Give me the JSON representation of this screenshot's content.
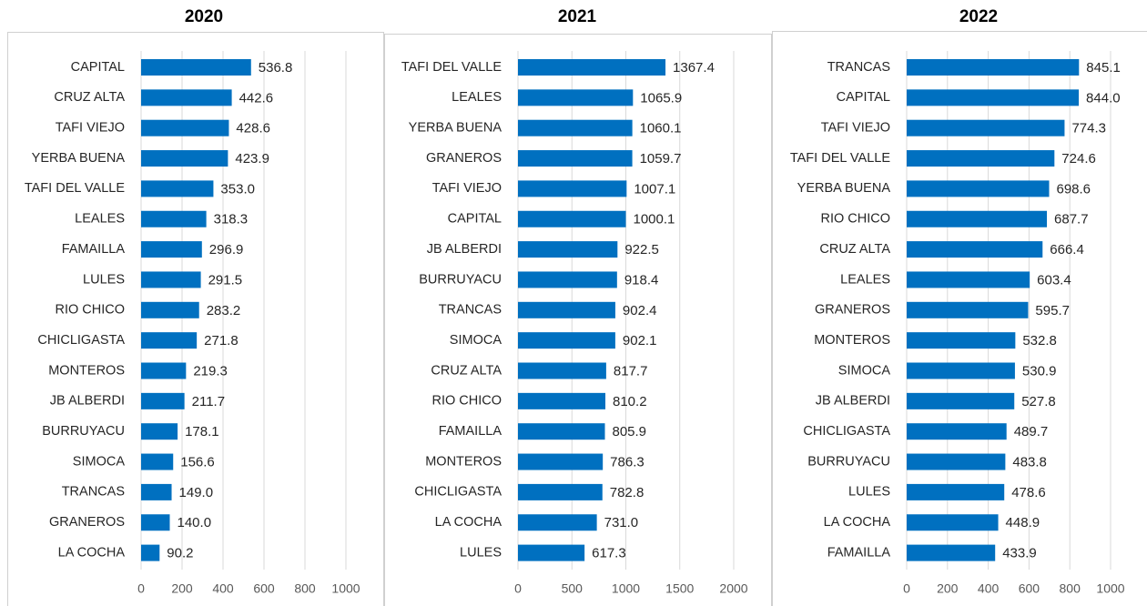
{
  "chart_data": [
    {
      "type": "bar",
      "orientation": "horizontal",
      "title": "2020",
      "color": "#0070c0",
      "categories": [
        "CAPITAL",
        "CRUZ ALTA",
        "TAFI VIEJO",
        "YERBA BUENA",
        "TAFI DEL VALLE",
        "LEALES",
        "FAMAILLA",
        "LULES",
        "RIO CHICO",
        "CHICLIGASTA",
        "MONTEROS",
        "JB ALBERDI",
        "BURRUYACU",
        "SIMOCA",
        "TRANCAS",
        "GRANEROS",
        "LA COCHA"
      ],
      "values": [
        536.8,
        442.6,
        428.6,
        423.9,
        353.0,
        318.3,
        296.9,
        291.5,
        283.2,
        271.8,
        219.3,
        211.7,
        178.1,
        156.6,
        149.0,
        140.0,
        90.2
      ],
      "value_labels": [
        "536.8",
        "442.6",
        "428.6",
        "423.9",
        "353.0",
        "318.3",
        "296.9",
        "291.5",
        "283.2",
        "271.8",
        "219.3",
        "211.7",
        "178.1",
        "156.6",
        "149.0",
        "140.0",
        "90.2"
      ],
      "xlim": [
        0,
        1000
      ],
      "xticks": [
        0,
        200,
        400,
        600,
        800,
        1000
      ],
      "grid": true
    },
    {
      "type": "bar",
      "orientation": "horizontal",
      "title": "2021",
      "color": "#0070c0",
      "categories": [
        "TAFI DEL VALLE",
        "LEALES",
        "YERBA BUENA",
        "GRANEROS",
        "TAFI VIEJO",
        "CAPITAL",
        "JB ALBERDI",
        "BURRUYACU",
        "TRANCAS",
        "SIMOCA",
        "CRUZ ALTA",
        "RIO CHICO",
        "FAMAILLA",
        "MONTEROS",
        "CHICLIGASTA",
        "LA COCHA",
        "LULES"
      ],
      "values": [
        1367.4,
        1065.9,
        1060.1,
        1059.7,
        1007.1,
        1000.1,
        922.5,
        918.4,
        902.4,
        902.1,
        817.7,
        810.2,
        805.9,
        786.3,
        782.8,
        731.0,
        617.3
      ],
      "value_labels": [
        "1367.4",
        "1065.9",
        "1060.1",
        "1059.7",
        "1007.1",
        "1000.1",
        "922.5",
        "918.4",
        "902.4",
        "902.1",
        "817.7",
        "810.2",
        "805.9",
        "786.3",
        "782.8",
        "731.0",
        "617.3"
      ],
      "xlim": [
        0,
        2000
      ],
      "xticks": [
        0,
        500,
        1000,
        1500,
        2000
      ],
      "grid": true
    },
    {
      "type": "bar",
      "orientation": "horizontal",
      "title": "2022",
      "color": "#0070c0",
      "categories": [
        "TRANCAS",
        "CAPITAL",
        "TAFI VIEJO",
        "TAFI DEL VALLE",
        "YERBA BUENA",
        "RIO CHICO",
        "CRUZ ALTA",
        "LEALES",
        "GRANEROS",
        "MONTEROS",
        "SIMOCA",
        "JB ALBERDI",
        "CHICLIGASTA",
        "BURRUYACU",
        "LULES",
        "LA COCHA",
        "FAMAILLA"
      ],
      "values": [
        845.1,
        844.0,
        774.3,
        724.6,
        698.6,
        687.7,
        666.4,
        603.4,
        595.7,
        532.8,
        530.9,
        527.8,
        489.7,
        483.8,
        478.6,
        448.9,
        433.9
      ],
      "value_labels": [
        "845.1",
        "844.0",
        "774.3",
        "724.6",
        "698.6",
        "687.7",
        "666.4",
        "603.4",
        "595.7",
        "532.8",
        "530.9",
        "527.8",
        "489.7",
        "483.8",
        "478.6",
        "448.9",
        "433.9"
      ],
      "xlim": [
        0,
        1000
      ],
      "xticks": [
        0,
        200,
        400,
        600,
        800,
        1000
      ],
      "grid": true
    }
  ]
}
